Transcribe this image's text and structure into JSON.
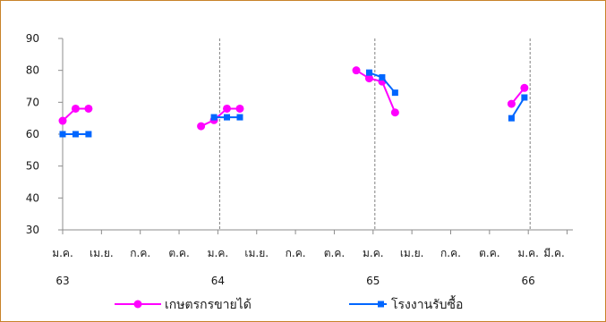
{
  "chart_data": {
    "type": "line",
    "title": "",
    "xlabel": "",
    "ylabel": "",
    "ylim": [
      30,
      90
    ],
    "yticks": [
      30,
      40,
      50,
      60,
      70,
      80,
      90
    ],
    "x_month_labels": [
      "ม.ค.",
      "เม.ย.",
      "ก.ค.",
      "ต.ค.",
      "ม.ค.",
      "เม.ย.",
      "ก.ค.",
      "ต.ค.",
      "ม.ค.",
      "เม.ย.",
      "ก.ค.",
      "ต.ค.",
      "ม.ค.",
      "มี.ค."
    ],
    "x_month_positions": [
      0,
      3,
      6,
      9,
      12,
      15,
      18,
      21,
      24,
      27,
      30,
      33,
      36,
      38
    ],
    "x_year_labels": [
      {
        "label": "63",
        "pos": 0
      },
      {
        "label": "64",
        "pos": 12
      },
      {
        "label": "65",
        "pos": 24
      },
      {
        "label": "66",
        "pos": 36
      }
    ],
    "year_dividers": [
      12,
      24,
      36
    ],
    "grid": false,
    "legend_position": "bottom",
    "series": [
      {
        "name": "เกษตรกรขายได้",
        "color": "#ff00ff",
        "marker": "circle",
        "segments": [
          [
            [
              0,
              64.2
            ],
            [
              1,
              68.0
            ],
            [
              2,
              68.0
            ]
          ],
          [
            [
              10.7,
              62.5
            ],
            [
              11.7,
              64.4
            ],
            [
              12.7,
              68.0
            ],
            [
              13.7,
              68.0
            ]
          ],
          [
            [
              22.7,
              80.0
            ],
            [
              23.7,
              77.5
            ],
            [
              24.7,
              76.5
            ],
            [
              25.7,
              66.8
            ]
          ],
          [
            [
              34.7,
              69.5
            ],
            [
              35.7,
              74.5
            ]
          ]
        ]
      },
      {
        "name": "โรงงานรับซื้อ",
        "color": "#0066ff",
        "marker": "square",
        "segments": [
          [
            [
              0,
              60.0
            ],
            [
              1,
              60.0
            ],
            [
              2,
              60.0
            ]
          ],
          [
            [
              11.7,
              65.3
            ],
            [
              12.7,
              65.3
            ],
            [
              13.7,
              65.3
            ]
          ],
          [
            [
              23.7,
              79.3
            ],
            [
              24.7,
              77.8
            ],
            [
              25.7,
              73.0
            ]
          ],
          [
            [
              34.7,
              65.0
            ],
            [
              35.7,
              71.5
            ]
          ]
        ]
      }
    ]
  }
}
